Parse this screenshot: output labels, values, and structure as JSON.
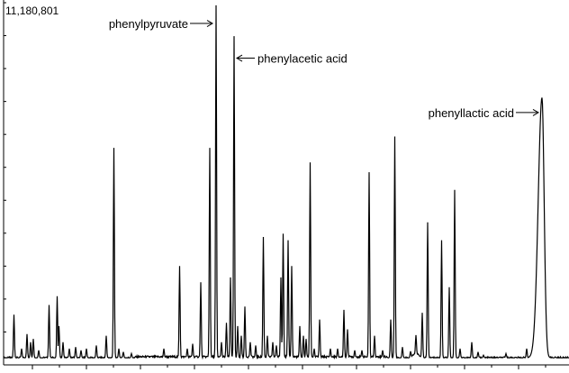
{
  "chart_data": {
    "type": "line",
    "title": "",
    "xlabel": "",
    "ylabel": "",
    "y_max_label": "11,180,801",
    "ylim": [
      0,
      11180801
    ],
    "xlim": [
      0,
      632
    ],
    "grid": false,
    "legend": "none",
    "line_color": "#000000",
    "baseline": 220000,
    "peaks": [
      {
        "x": 15.5,
        "y": 1550000
      },
      {
        "x": 24,
        "y": 500000
      },
      {
        "x": 30,
        "y": 950000
      },
      {
        "x": 34,
        "y": 700000
      },
      {
        "x": 37,
        "y": 800000
      },
      {
        "x": 43,
        "y": 450000
      },
      {
        "x": 54.5,
        "y": 1850000
      },
      {
        "x": 63.5,
        "y": 2120000
      },
      {
        "x": 65.5,
        "y": 1200000
      },
      {
        "x": 70,
        "y": 700000
      },
      {
        "x": 77,
        "y": 500000
      },
      {
        "x": 84,
        "y": 550000
      },
      {
        "x": 90,
        "y": 450000
      },
      {
        "x": 96,
        "y": 500000
      },
      {
        "x": 107,
        "y": 600000
      },
      {
        "x": 118,
        "y": 900000
      },
      {
        "x": 126.5,
        "y": 6700000
      },
      {
        "x": 132,
        "y": 500000
      },
      {
        "x": 137,
        "y": 400000
      },
      {
        "x": 146,
        "y": 350000
      },
      {
        "x": 182,
        "y": 500000
      },
      {
        "x": 199.5,
        "y": 3050000
      },
      {
        "x": 208,
        "y": 500000
      },
      {
        "x": 214,
        "y": 650000
      },
      {
        "x": 223,
        "y": 2550000
      },
      {
        "x": 233,
        "y": 6700000
      },
      {
        "x": 240,
        "y": 11100000
      },
      {
        "x": 246,
        "y": 700000
      },
      {
        "x": 251.5,
        "y": 1300000
      },
      {
        "x": 256,
        "y": 2700000
      },
      {
        "x": 260,
        "y": 10150000
      },
      {
        "x": 264,
        "y": 1200000
      },
      {
        "x": 268,
        "y": 900000
      },
      {
        "x": 272,
        "y": 1800000
      },
      {
        "x": 278,
        "y": 700000
      },
      {
        "x": 284,
        "y": 600000
      },
      {
        "x": 292.5,
        "y": 3950000
      },
      {
        "x": 297,
        "y": 900000
      },
      {
        "x": 303,
        "y": 700000
      },
      {
        "x": 307,
        "y": 600000
      },
      {
        "x": 312,
        "y": 2700000
      },
      {
        "x": 314.5,
        "y": 4050000
      },
      {
        "x": 320,
        "y": 3850000
      },
      {
        "x": 324,
        "y": 3050000
      },
      {
        "x": 333,
        "y": 1200000
      },
      {
        "x": 337,
        "y": 900000
      },
      {
        "x": 340,
        "y": 800000
      },
      {
        "x": 344.5,
        "y": 6250000
      },
      {
        "x": 349,
        "y": 500000
      },
      {
        "x": 355,
        "y": 1400000
      },
      {
        "x": 367,
        "y": 500000
      },
      {
        "x": 375,
        "y": 500000
      },
      {
        "x": 382,
        "y": 1700000
      },
      {
        "x": 386,
        "y": 1100000
      },
      {
        "x": 394,
        "y": 450000
      },
      {
        "x": 402,
        "y": 450000
      },
      {
        "x": 410,
        "y": 5950000
      },
      {
        "x": 416,
        "y": 900000
      },
      {
        "x": 425,
        "y": 450000
      },
      {
        "x": 434,
        "y": 1400000
      },
      {
        "x": 438.5,
        "y": 7050000
      },
      {
        "x": 447,
        "y": 550000
      },
      {
        "x": 456,
        "y": 400000
      },
      {
        "x": 462,
        "y": 800000
      },
      {
        "x": 469,
        "y": 1600000
      },
      {
        "x": 475,
        "y": 4400000
      },
      {
        "x": 490.5,
        "y": 3850000
      },
      {
        "x": 499,
        "y": 2400000
      },
      {
        "x": 505,
        "y": 5400000
      },
      {
        "x": 511,
        "y": 500000
      },
      {
        "x": 524,
        "y": 700000
      },
      {
        "x": 531,
        "y": 400000
      },
      {
        "x": 537,
        "y": 300000
      },
      {
        "x": 562,
        "y": 350000
      },
      {
        "x": 585,
        "y": 500000
      }
    ],
    "broad_peak": {
      "x": 602,
      "y": 8250000
    },
    "annotations": [
      {
        "text": "phenylpyruvate",
        "peak_x": 240,
        "arrow": "right",
        "y": 10540000
      },
      {
        "text": "phenylacetic acid",
        "peak_x": 260,
        "arrow": "left",
        "y": 9470000
      },
      {
        "text": "phenyllactic acid",
        "peak_x": 602,
        "arrow": "right",
        "y": 7790000
      }
    ]
  }
}
